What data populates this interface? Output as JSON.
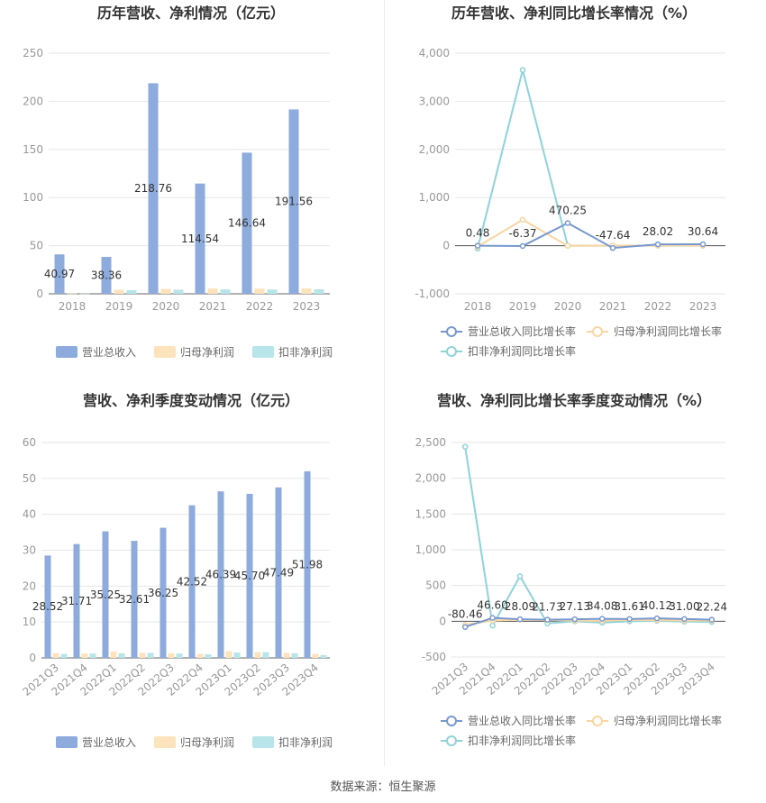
{
  "source": "数据来源：恒生聚源",
  "colors": {
    "revenue": "#8dabdc",
    "net_profit": "#fde3bb",
    "deducted_profit": "#b8e5ea",
    "revenue_line": "#7899cf",
    "net_line": "#f9d6a1",
    "deducted_line": "#8ed3da"
  },
  "chart_data": [
    {
      "type": "bar",
      "title": "历年营收、净利情况（亿元）",
      "categories": [
        "2018",
        "2019",
        "2020",
        "2021",
        "2022",
        "2023"
      ],
      "series": [
        {
          "name": "营业总收入",
          "values": [
            40.97,
            38.36,
            218.76,
            114.54,
            146.64,
            191.56
          ]
        },
        {
          "name": "归母净利润",
          "values": [
            0.3,
            4.2,
            5.1,
            5.5,
            5.4,
            5.6
          ]
        },
        {
          "name": "扣非净利润",
          "values": [
            0.2,
            3.8,
            4.3,
            4.6,
            4.5,
            4.7
          ]
        }
      ],
      "data_labels": [
        "40.97",
        "38.36",
        "218.76",
        "114.54",
        "146.64",
        "191.56"
      ],
      "yticks": [
        "0",
        "50",
        "100",
        "150",
        "200",
        "250"
      ],
      "ylim": [
        0,
        250
      ],
      "legend_position": "bottom"
    },
    {
      "type": "line",
      "title": "历年营收、净利同比增长率情况（%）",
      "categories": [
        "2018",
        "2019",
        "2020",
        "2021",
        "2022",
        "2023"
      ],
      "series": [
        {
          "name": "营业总收入同比增长率",
          "values": [
            0.48,
            -6.37,
            470.25,
            -47.64,
            28.02,
            30.64
          ]
        },
        {
          "name": "归母净利润同比增长率",
          "values": [
            -20,
            540,
            -3,
            5,
            0,
            3
          ]
        },
        {
          "name": "扣非净利润同比增长率",
          "values": [
            -60,
            3650,
            0,
            0,
            0,
            0
          ]
        }
      ],
      "data_labels": [
        "0.48",
        "-6.37",
        "470.25",
        "-47.64",
        "28.02",
        "30.64"
      ],
      "yticks": [
        "-1,000",
        "0",
        "1,000",
        "2,000",
        "3,000",
        "4,000"
      ],
      "ylim": [
        -1000,
        4000
      ],
      "legend_position": "bottom"
    },
    {
      "type": "bar",
      "title": "营收、净利季度变动情况（亿元）",
      "categories": [
        "2021Q3",
        "2021Q4",
        "2022Q1",
        "2022Q2",
        "2022Q3",
        "2022Q4",
        "2023Q1",
        "2023Q2",
        "2023Q3",
        "2023Q4"
      ],
      "series": [
        {
          "name": "营业总收入",
          "values": [
            28.52,
            31.71,
            35.25,
            32.61,
            36.25,
            42.52,
            46.39,
            45.7,
            47.49,
            51.98
          ]
        },
        {
          "name": "归母净利润",
          "values": [
            1.3,
            1.2,
            1.8,
            1.4,
            1.3,
            1.1,
            1.9,
            1.6,
            1.4,
            1.1
          ]
        },
        {
          "name": "扣非净利润",
          "values": [
            1.1,
            1.2,
            1.3,
            1.4,
            1.2,
            1.0,
            1.5,
            1.6,
            1.3,
            0.8
          ]
        }
      ],
      "data_labels": [
        "28.52",
        "31.71",
        "35.25",
        "32.61",
        "36.25",
        "42.52",
        "46.39",
        "45.70",
        "47.49",
        "51.98"
      ],
      "yticks": [
        "0",
        "10",
        "20",
        "30",
        "40",
        "50",
        "60"
      ],
      "ylim": [
        0,
        60
      ],
      "legend_position": "bottom"
    },
    {
      "type": "line",
      "title": "营收、净利同比增长率季度变动情况（%）",
      "categories": [
        "2021Q3",
        "2021Q4",
        "2022Q1",
        "2022Q2",
        "2022Q3",
        "2022Q4",
        "2023Q1",
        "2023Q2",
        "2023Q3",
        "2023Q4"
      ],
      "series": [
        {
          "name": "营业总收入同比增长率",
          "values": [
            -80.46,
            46.6,
            28.09,
            21.73,
            27.13,
            34.08,
            31.61,
            40.12,
            31.0,
            22.24
          ]
        },
        {
          "name": "归母净利润同比增长率",
          "values": [
            -50,
            10,
            20,
            15,
            10,
            5,
            20,
            15,
            10,
            8
          ]
        },
        {
          "name": "扣非净利润同比增长率",
          "values": [
            2440,
            -60,
            630,
            -30,
            0,
            -20,
            0,
            5,
            -5,
            -10
          ]
        }
      ],
      "data_labels": [
        "-80.46",
        "46.60",
        "28.09",
        "21.73",
        "27.13",
        "34.08",
        "31.61",
        "40.12",
        "31.00",
        "22.24"
      ],
      "yticks": [
        "-500",
        "0",
        "500",
        "1,000",
        "1,500",
        "2,000",
        "2,500"
      ],
      "ylim": [
        -500,
        2500
      ],
      "legend_position": "bottom"
    }
  ]
}
